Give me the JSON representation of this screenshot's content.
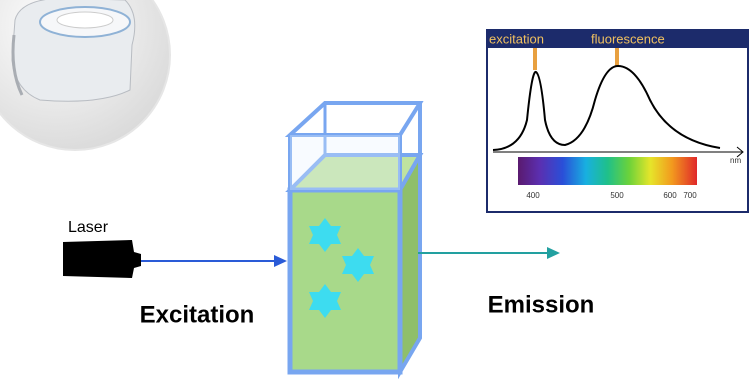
{
  "laser": {
    "label": "Laser"
  },
  "excitation": {
    "label": "Excitation"
  },
  "emission": {
    "label": "Emission"
  },
  "inset": {
    "excitation_label": "excitation",
    "fluorescence_label": "fluorescence",
    "unit": "nm",
    "ticks": [
      "400",
      "500",
      "600",
      "700"
    ]
  }
}
